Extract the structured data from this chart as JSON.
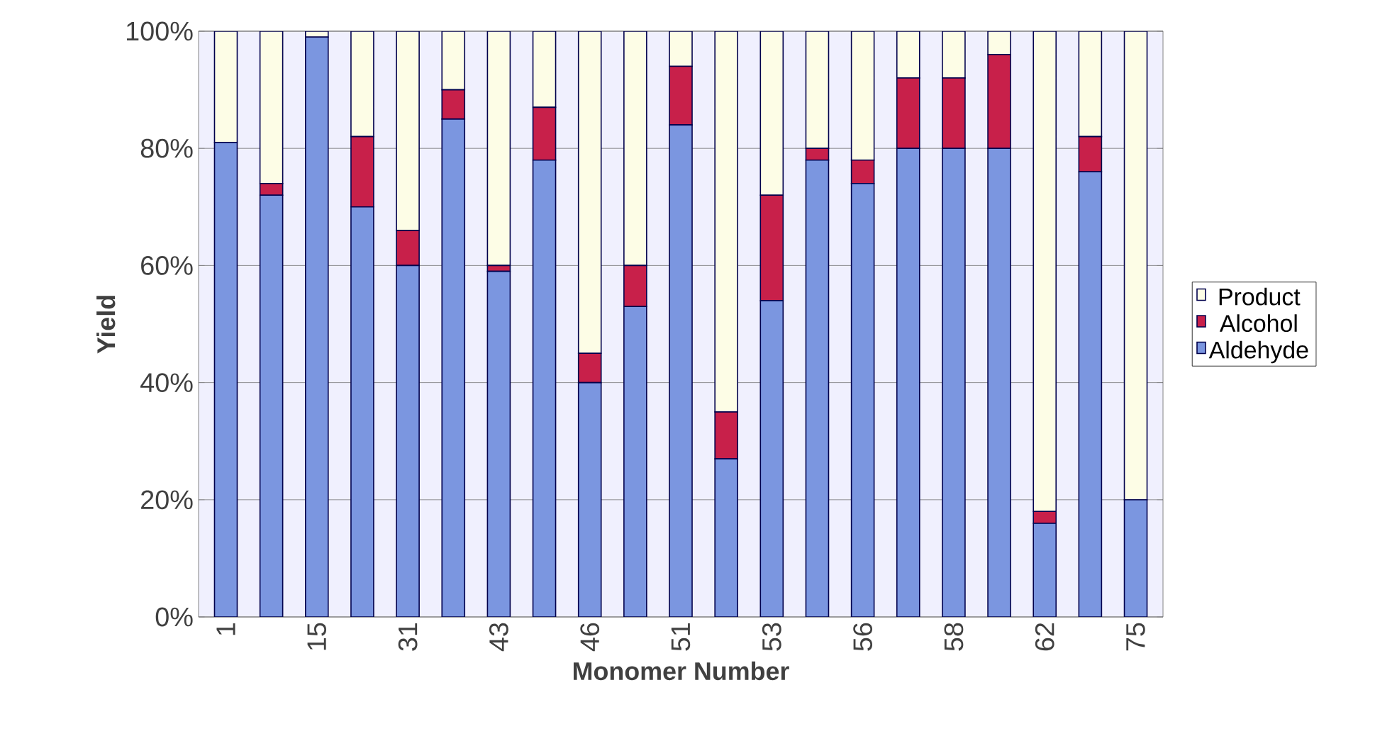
{
  "chart_data": {
    "type": "bar",
    "stacked": true,
    "xlabel": "Monomer Number",
    "ylabel": "Yield",
    "categories": [
      "1",
      null,
      "15",
      null,
      "31",
      null,
      "43",
      null,
      "46",
      null,
      "51",
      null,
      "53",
      null,
      "56",
      null,
      "58",
      null,
      "62",
      null,
      "75"
    ],
    "series": [
      {
        "name": "Aldehyde",
        "color": "#7b96e0",
        "values": [
          81,
          72,
          99,
          70,
          60,
          85,
          59,
          78,
          40,
          53,
          84,
          27,
          54,
          78,
          74,
          80,
          80,
          80,
          16,
          76,
          20
        ]
      },
      {
        "name": "Alcohol",
        "color": "#c8204a",
        "values": [
          0,
          2,
          0,
          12,
          6,
          5,
          1,
          9,
          5,
          7,
          10,
          8,
          18,
          2,
          4,
          12,
          12,
          16,
          2,
          6,
          0
        ]
      },
      {
        "name": "Product",
        "color": "#fdfde6",
        "values": [
          19,
          26,
          1,
          18,
          34,
          10,
          40,
          13,
          55,
          40,
          6,
          65,
          28,
          20,
          22,
          8,
          8,
          4,
          82,
          18,
          80
        ]
      }
    ],
    "ylim": [
      0,
      100
    ],
    "yticks": [
      {
        "value": 0,
        "label": "0%"
      },
      {
        "value": 20,
        "label": "20%"
      },
      {
        "value": 40,
        "label": "40%"
      },
      {
        "value": 60,
        "label": "60%"
      },
      {
        "value": 80,
        "label": "80%"
      },
      {
        "value": 100,
        "label": "100%"
      }
    ],
    "grid": "y",
    "legend": "right"
  }
}
